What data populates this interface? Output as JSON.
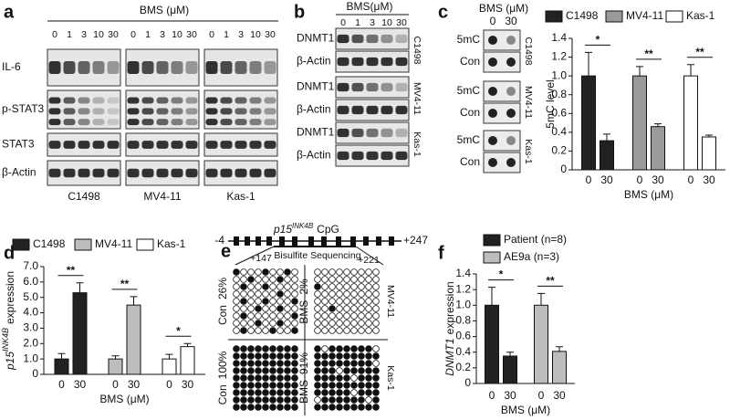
{
  "blot_a": {
    "panel": "a",
    "title": "BMS (μM)",
    "doses": [
      "0",
      "1",
      "3",
      "10",
      "30"
    ],
    "rows": [
      "IL-6",
      "p-STAT3",
      "STAT3",
      "β-Actin"
    ],
    "cells": [
      "C1498",
      "MV4-11",
      "Kas-1"
    ]
  },
  "blot_b": {
    "panel": "b",
    "title": "BMS(μM)",
    "doses": [
      "0",
      "1",
      "3",
      "10",
      "30"
    ],
    "blocks": [
      {
        "cell": "C1498",
        "rows": [
          "DNMT1",
          "β-Actin"
        ]
      },
      {
        "cell": "MV4-11",
        "rows": [
          "DNMT1",
          "β-Actin"
        ]
      },
      {
        "cell": "Kas-1",
        "rows": [
          "DNMT1",
          "β-Actin"
        ]
      }
    ]
  },
  "dot_blot_c": {
    "panel": "c",
    "title": "BMS (μM)",
    "doses": [
      "0",
      "30"
    ],
    "blocks": [
      {
        "cell": "C1498",
        "rows": [
          "5mC",
          "Con"
        ]
      },
      {
        "cell": "MV4-11",
        "rows": [
          "5mC",
          "Con"
        ]
      },
      {
        "cell": "Kas-1",
        "rows": [
          "5mC",
          "Con"
        ]
      }
    ]
  },
  "bisulfite_e": {
    "panel": "e",
    "gene": "p15",
    "sup": "INK4B",
    "region": "CpG",
    "start": "-4",
    "end": "+247",
    "seq_start": "+147",
    "seq_end": "+221",
    "method": "Bisulfite Sequencing",
    "grids": [
      {
        "cell": "MV4-11",
        "groups": [
          {
            "label": "Con",
            "pct": "26%"
          },
          {
            "label": "BMS",
            "pct": "2%"
          }
        ]
      },
      {
        "cell": "Kas-1",
        "groups": [
          {
            "label": "Con",
            "pct": "100%"
          },
          {
            "label": "BMS",
            "pct": "91%"
          }
        ]
      }
    ]
  },
  "chart_data": [
    {
      "type": "bar",
      "ylabel": "5mC level",
      "xlabel": "BMS (μM)",
      "categories": [
        "0",
        "30"
      ],
      "legend": "top",
      "ylim": [
        0,
        1.4
      ],
      "yticks": [
        0,
        0.2,
        0.4,
        0.6,
        0.8,
        {
          "value": 1,
          "label": "1.0"
        },
        1.2,
        1.4
      ],
      "series": [
        {
          "name": "C1498",
          "color": "#222222",
          "values": [
            1.0,
            0.31
          ],
          "errors": [
            0.25,
            0.07
          ],
          "significance": "*"
        },
        {
          "name": "MV4-11",
          "color": "#9a9a9a",
          "values": [
            1.0,
            0.46
          ],
          "errors": [
            0.1,
            0.03
          ],
          "significance": "**"
        },
        {
          "name": "Kas-1",
          "color": "#ffffff",
          "values": [
            1.0,
            0.35
          ],
          "errors": [
            0.12,
            0.02
          ],
          "significance": "**"
        }
      ]
    },
    {
      "type": "bar",
      "panel": "d",
      "ylabel": {
        "gene": "p15",
        "sup": "INK4B",
        "text": "expression"
      },
      "xlabel": "BMS (μM)",
      "categories": [
        "0",
        "30"
      ],
      "legend": "top",
      "ylim": [
        0,
        7
      ],
      "yticks": [
        0,
        {
          "value": 1,
          "label": "1.0"
        },
        {
          "value": 2,
          "label": "2.0"
        },
        {
          "value": 3,
          "label": "3.0"
        },
        {
          "value": 4,
          "label": "4.0"
        },
        {
          "value": 5,
          "label": "5.0"
        },
        {
          "value": 6,
          "label": "6.0"
        },
        {
          "value": 7,
          "label": "7.0"
        }
      ],
      "series": [
        {
          "name": "C1498",
          "color": "#222222",
          "values": [
            1.0,
            5.3
          ],
          "errors": [
            0.35,
            0.65
          ],
          "significance": "**"
        },
        {
          "name": "MV4-11",
          "color": "#bdbdbd",
          "values": [
            1.0,
            4.5
          ],
          "errors": [
            0.2,
            0.55
          ],
          "significance": "**"
        },
        {
          "name": "Kas-1",
          "color": "#ffffff",
          "values": [
            1.0,
            1.8
          ],
          "errors": [
            0.3,
            0.2
          ],
          "significance": "*"
        }
      ]
    },
    {
      "type": "bar",
      "panel": "f",
      "ylabel": {
        "gene": "DNMT1",
        "text": "expression"
      },
      "xlabel": "BMS (μM)",
      "categories": [
        "0",
        "30"
      ],
      "legend": "top",
      "ylim": [
        0,
        1.4
      ],
      "yticks": [
        0,
        0.2,
        0.4,
        0.6,
        0.8,
        {
          "value": 1,
          "label": "1.0"
        },
        1.2,
        1.4
      ],
      "series": [
        {
          "name": "Patient (n=8)",
          "color": "#222222",
          "values": [
            1.0,
            0.35
          ],
          "errors": [
            0.23,
            0.05
          ],
          "significance": "*"
        },
        {
          "name": "AE9a (n=3)",
          "color": "#bdbdbd",
          "values": [
            1.0,
            0.41
          ],
          "errors": [
            0.15,
            0.06
          ],
          "significance": "**"
        }
      ]
    }
  ]
}
